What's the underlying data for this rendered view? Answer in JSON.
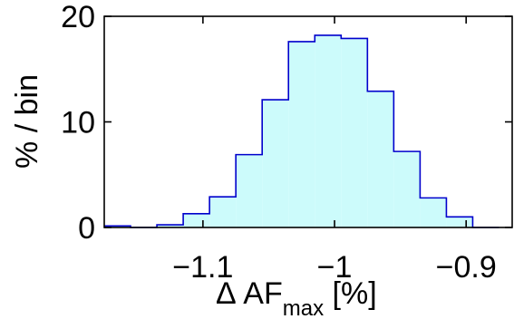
{
  "chart_data": {
    "type": "histogram",
    "title": "",
    "xlabel": {
      "prefix": "Δ AF",
      "subscript": "max",
      "suffix": " [%]"
    },
    "ylabel": "% / bin",
    "xlim": [
      -1.175,
      -0.865
    ],
    "ylim": [
      0,
      20
    ],
    "grid": false,
    "legend": "none",
    "bin_width": 0.02,
    "bins": [
      {
        "x0": -1.175,
        "x1": -1.155,
        "value": 0.15
      },
      {
        "x0": -1.155,
        "x1": -1.135,
        "value": 0.0
      },
      {
        "x0": -1.135,
        "x1": -1.115,
        "value": 0.25
      },
      {
        "x0": -1.115,
        "x1": -1.095,
        "value": 1.3
      },
      {
        "x0": -1.095,
        "x1": -1.075,
        "value": 2.9
      },
      {
        "x0": -1.075,
        "x1": -1.055,
        "value": 6.9
      },
      {
        "x0": -1.055,
        "x1": -1.035,
        "value": 12.1
      },
      {
        "x0": -1.035,
        "x1": -1.015,
        "value": 17.6
      },
      {
        "x0": -1.015,
        "x1": -0.995,
        "value": 18.2
      },
      {
        "x0": -0.995,
        "x1": -0.975,
        "value": 17.9
      },
      {
        "x0": -0.975,
        "x1": -0.955,
        "value": 12.9
      },
      {
        "x0": -0.955,
        "x1": -0.935,
        "value": 7.2
      },
      {
        "x0": -0.935,
        "x1": -0.915,
        "value": 2.8
      },
      {
        "x0": -0.915,
        "x1": -0.895,
        "value": 1.0
      },
      {
        "x0": -0.895,
        "x1": -0.875,
        "value": 0.0
      }
    ],
    "xticks": [
      {
        "value": -1.1,
        "label": "−1.1"
      },
      {
        "value": -1.0,
        "label": "−1"
      },
      {
        "value": -0.9,
        "label": "−0.9"
      }
    ],
    "yticks": [
      {
        "value": 0,
        "label": "0"
      },
      {
        "value": 10,
        "label": "10"
      },
      {
        "value": 20,
        "label": "20"
      }
    ],
    "colors": {
      "fill": "#ccfbfb",
      "stroke": "#0000cc",
      "axis": "#000000"
    }
  }
}
